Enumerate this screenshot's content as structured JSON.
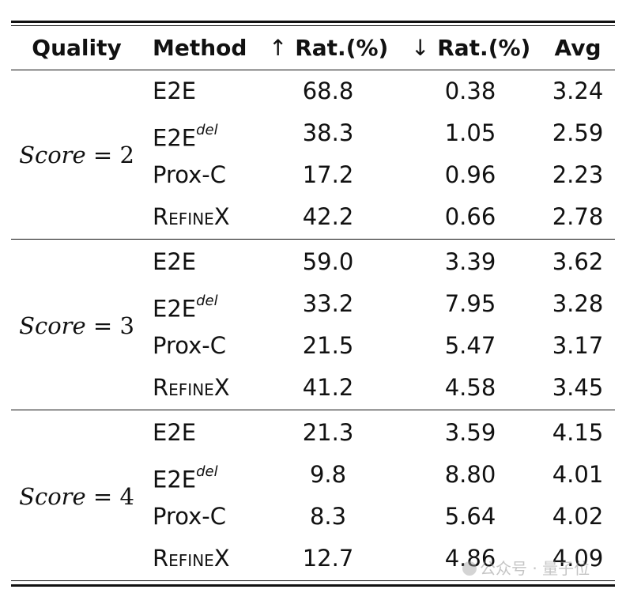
{
  "header": {
    "quality": "Quality",
    "method": "Method",
    "up_arrow": "↑",
    "up_label": "Rat.(%)",
    "down_arrow": "↓",
    "down_label": "Rat.(%)",
    "avg": "Avg"
  },
  "groups": [
    {
      "score_word": "Score",
      "score_eq": " = 2",
      "rows": [
        {
          "method": "E2E",
          "sup": "",
          "up": "68.8",
          "down": "0.38",
          "avg": "3.24"
        },
        {
          "method": "E2E",
          "sup": "del",
          "up": "38.3",
          "down": "1.05",
          "avg": "2.59"
        },
        {
          "method": "Prox-C",
          "sup": "",
          "up": "17.2",
          "down": "0.96",
          "avg": "2.23"
        },
        {
          "method": "RefineX",
          "sup": "",
          "up": "42.2",
          "down": "0.66",
          "avg": "2.78"
        }
      ]
    },
    {
      "score_word": "Score",
      "score_eq": " = 3",
      "rows": [
        {
          "method": "E2E",
          "sup": "",
          "up": "59.0",
          "down": "3.39",
          "avg": "3.62"
        },
        {
          "method": "E2E",
          "sup": "del",
          "up": "33.2",
          "down": "7.95",
          "avg": "3.28"
        },
        {
          "method": "Prox-C",
          "sup": "",
          "up": "21.5",
          "down": "5.47",
          "avg": "3.17"
        },
        {
          "method": "RefineX",
          "sup": "",
          "up": "41.2",
          "down": "4.58",
          "avg": "3.45"
        }
      ]
    },
    {
      "score_word": "Score",
      "score_eq": " = 4",
      "rows": [
        {
          "method": "E2E",
          "sup": "",
          "up": "21.3",
          "down": "3.59",
          "avg": "4.15"
        },
        {
          "method": "E2E",
          "sup": "del",
          "up": "9.8",
          "down": "8.80",
          "avg": "4.01"
        },
        {
          "method": "Prox-C",
          "sup": "",
          "up": "8.3",
          "down": "5.64",
          "avg": "4.02"
        },
        {
          "method": "RefineX",
          "sup": "",
          "up": "12.7",
          "down": "4.86",
          "avg": "4.09"
        }
      ]
    }
  ],
  "watermark": "公众号 · 量子位"
}
